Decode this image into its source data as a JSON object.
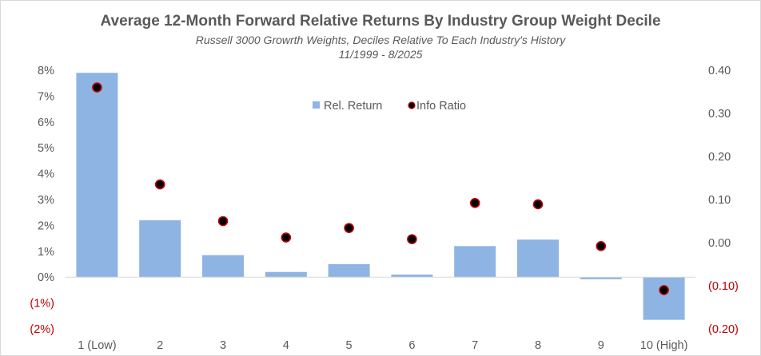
{
  "chart_data": {
    "type": "bar",
    "title": "Average 12-Month Forward Relative Returns By Industry Group Weight Decile",
    "subtitle": "Russell 3000 Growrth Weights, Deciles Relative To Each Industry's History",
    "period": "11/1999 - 8/2025",
    "categories": [
      "1 (Low)",
      "2",
      "3",
      "4",
      "5",
      "6",
      "7",
      "8",
      "9",
      "10 (High)"
    ],
    "series": [
      {
        "name": "Rel. Return",
        "type": "bar",
        "axis": "left",
        "color": "#8eb4e3",
        "values": [
          7.9,
          2.2,
          0.85,
          0.2,
          0.5,
          0.1,
          1.2,
          1.45,
          -0.08,
          -1.65
        ]
      },
      {
        "name": "Info Ratio",
        "type": "scatter",
        "axis": "right",
        "color": "#000000",
        "edge_color": "#c00000",
        "values": [
          0.36,
          0.135,
          0.05,
          0.012,
          0.034,
          0.008,
          0.092,
          0.089,
          -0.008,
          -0.11
        ]
      }
    ],
    "y_left": {
      "ylim": [
        -2,
        8
      ],
      "ticks": [
        8,
        7,
        6,
        5,
        4,
        3,
        2,
        1,
        0,
        -1,
        -2
      ],
      "tick_labels": [
        "8%",
        "7%",
        "6%",
        "5%",
        "4%",
        "3%",
        "2%",
        "1%",
        "0%",
        "(1%)",
        "(2%)"
      ]
    },
    "y_right": {
      "ylim": [
        -0.2,
        0.4
      ],
      "ticks": [
        0.4,
        0.3,
        0.2,
        0.1,
        0.0,
        -0.1,
        -0.2
      ],
      "tick_labels": [
        "0.40",
        "0.30",
        "0.20",
        "0.10",
        "0.00",
        "(0.10)",
        "(0.20)"
      ]
    },
    "negative_label_color": "#c00000",
    "legend_position": "top-center",
    "grid": false
  }
}
